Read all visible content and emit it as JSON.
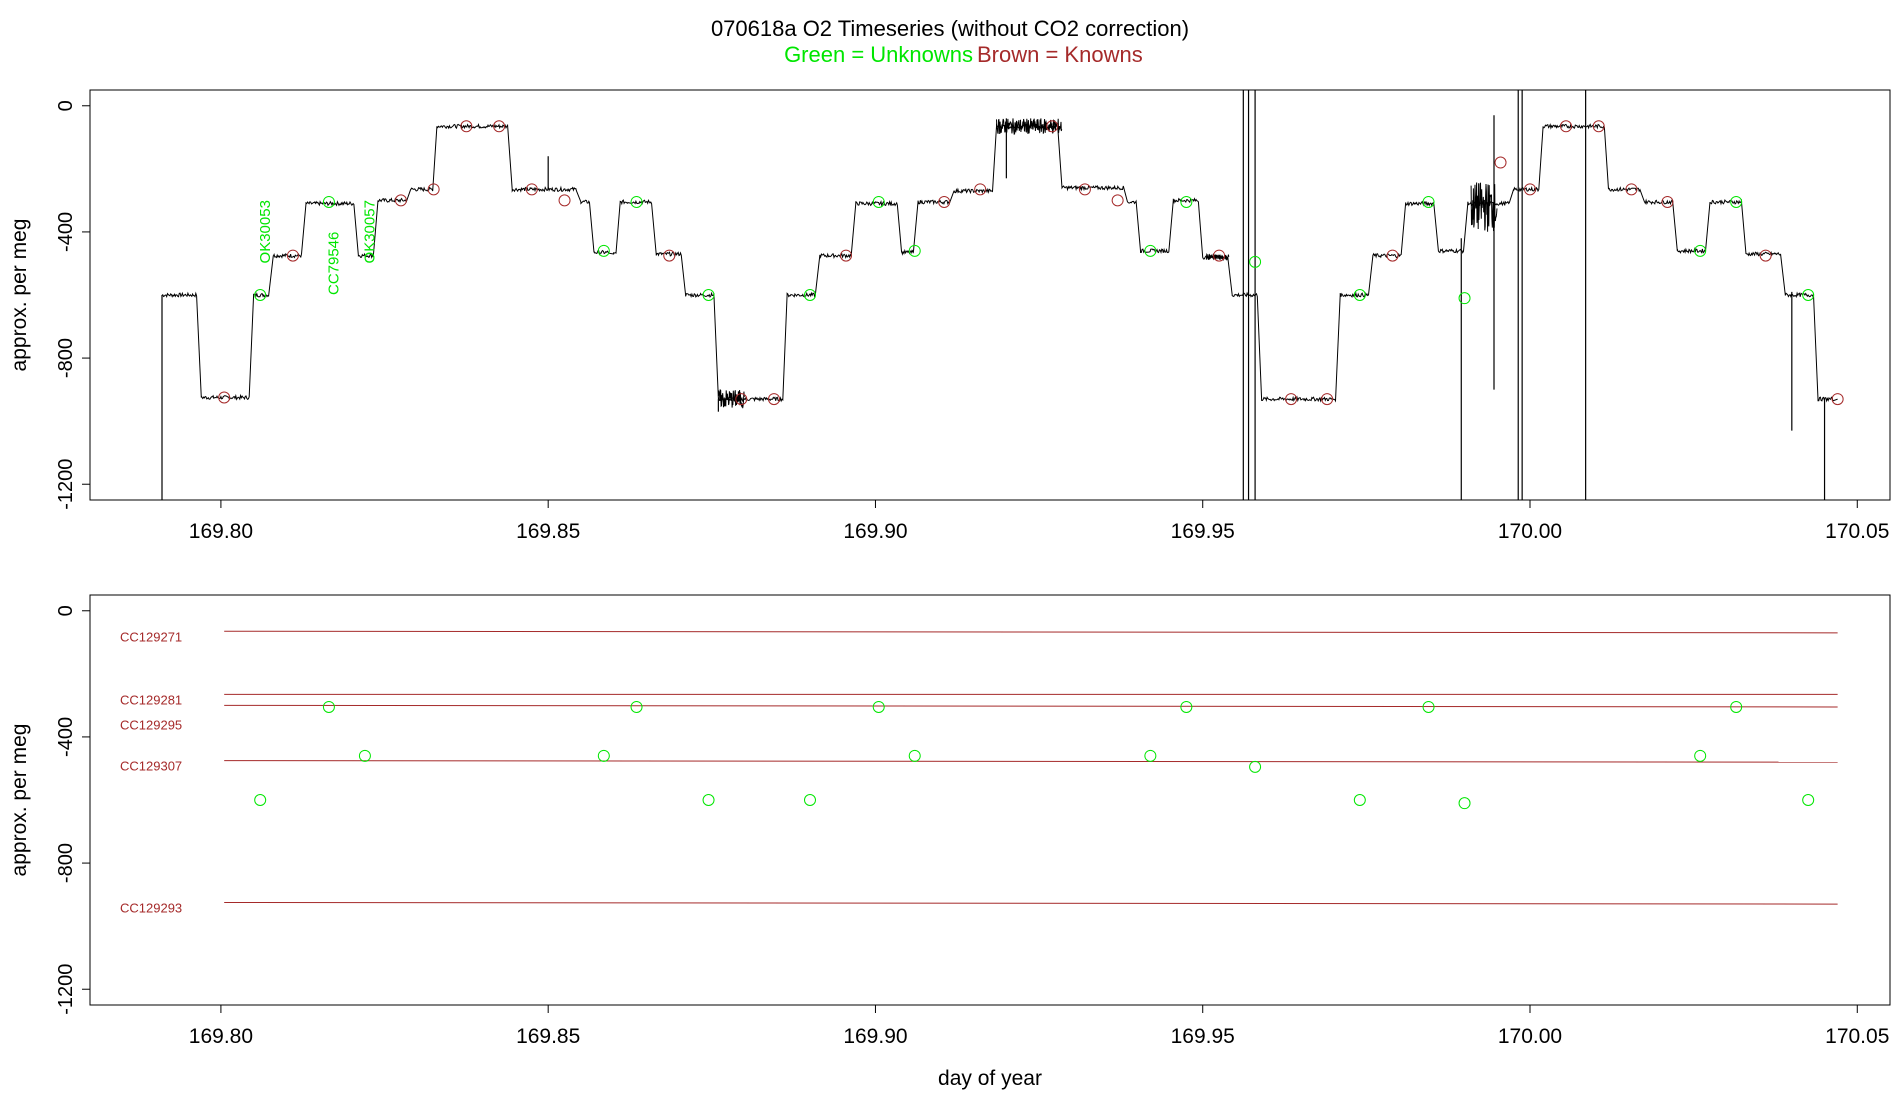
{
  "title": {
    "line1": "070618a   O2 Timeseries (without CO2 correction)",
    "legend_green": "Green = Unknowns",
    "legend_brown": "Brown = Knowns"
  },
  "colors": {
    "unknown": "#00e600",
    "known": "#a52a2a",
    "trace": "#000000",
    "axis": "#000000"
  },
  "chart_data": [
    {
      "type": "line",
      "name": "top",
      "xlim": [
        169.78,
        170.055
      ],
      "ylim": [
        -1250,
        50
      ],
      "yticks": [
        0,
        -400,
        -800,
        -1200
      ],
      "ytick_labels": [
        "0",
        "-400",
        "-800",
        "-1200"
      ],
      "xticks": [
        169.8,
        169.85,
        169.9,
        169.95,
        170.0,
        170.05
      ],
      "xtick_labels": [
        "169.80",
        "169.85",
        "169.90",
        "169.95",
        "170.00",
        "170.05"
      ],
      "ylabel": "approx. per meg",
      "xlabel": "",
      "trace_steps": [
        [
          169.791,
          -600
        ],
        [
          169.797,
          -925
        ],
        [
          169.805,
          -600
        ],
        [
          169.808,
          -475
        ],
        [
          169.813,
          -310
        ],
        [
          169.821,
          -475
        ],
        [
          169.824,
          -300
        ],
        [
          169.829,
          -265
        ],
        [
          169.833,
          -65
        ],
        [
          169.8445,
          -265
        ],
        [
          169.855,
          -305
        ],
        [
          169.857,
          -465
        ],
        [
          169.86,
          -470
        ],
        [
          169.861,
          -305
        ],
        [
          169.8665,
          -470
        ],
        [
          169.871,
          -600
        ],
        [
          169.876,
          -930
        ],
        [
          169.8865,
          -600
        ],
        [
          169.8915,
          -475
        ],
        [
          169.897,
          -310
        ],
        [
          169.904,
          -465
        ],
        [
          169.9065,
          -305
        ],
        [
          169.912,
          -270
        ],
        [
          169.9185,
          -65
        ],
        [
          169.9285,
          -260
        ],
        [
          169.9385,
          -305
        ],
        [
          169.9405,
          -460
        ],
        [
          169.9455,
          -300
        ],
        [
          169.95,
          -480
        ],
        [
          169.9545,
          -600
        ],
        [
          169.959,
          -930
        ],
        [
          169.971,
          -600
        ],
        [
          169.976,
          -475
        ],
        [
          169.981,
          -310
        ],
        [
          169.986,
          -460
        ],
        [
          169.9905,
          -310
        ],
        [
          169.9975,
          -265
        ],
        [
          170.002,
          -65
        ],
        [
          170.012,
          -265
        ],
        [
          170.0175,
          -305
        ],
        [
          170.0225,
          -460
        ],
        [
          170.0275,
          -305
        ],
        [
          170.033,
          -470
        ],
        [
          170.039,
          -600
        ],
        [
          170.044,
          -930
        ],
        [
          170.047,
          -930
        ]
      ],
      "trace_end": 170.047,
      "spikes": [
        [
          169.791,
          -600,
          -1250
        ],
        [
          169.9562,
          50,
          -1250
        ],
        [
          169.957,
          50,
          -1250
        ],
        [
          169.958,
          50,
          -1250
        ],
        [
          169.9895,
          -420,
          -1250
        ],
        [
          169.9945,
          -30,
          -900
        ],
        [
          169.9982,
          50,
          -1250
        ],
        [
          169.9988,
          50,
          -1250
        ],
        [
          170.0085,
          50,
          -1250
        ],
        [
          170.04,
          -590,
          -1030
        ],
        [
          170.045,
          -930,
          -1250
        ],
        [
          169.92,
          -40,
          -230
        ],
        [
          169.876,
          -930,
          -970
        ],
        [
          169.85,
          -265,
          -160
        ]
      ],
      "noisy_segments": [
        [
          169.9185,
          169.9285,
          -65,
          25
        ],
        [
          169.991,
          169.995,
          -320,
          80
        ],
        [
          169.876,
          169.88,
          -930,
          30
        ],
        [
          169.9505,
          169.954,
          -480,
          10
        ]
      ],
      "knowns_points": [
        [
          169.8005,
          -925
        ],
        [
          169.811,
          -475
        ],
        [
          169.8275,
          -300
        ],
        [
          169.8325,
          -265
        ],
        [
          169.8375,
          -65
        ],
        [
          169.8425,
          -65
        ],
        [
          169.8475,
          -265
        ],
        [
          169.8525,
          -300
        ],
        [
          169.8685,
          -475
        ],
        [
          169.8795,
          -930
        ],
        [
          169.8845,
          -930
        ],
        [
          169.8955,
          -475
        ],
        [
          169.9105,
          -305
        ],
        [
          169.916,
          -265
        ],
        [
          169.927,
          -65
        ],
        [
          169.932,
          -265
        ],
        [
          169.937,
          -300
        ],
        [
          169.9525,
          -475
        ],
        [
          169.9635,
          -930
        ],
        [
          169.969,
          -930
        ],
        [
          169.979,
          -475
        ],
        [
          169.9955,
          -180
        ],
        [
          170.0,
          -265
        ],
        [
          170.0055,
          -65
        ],
        [
          170.0105,
          -65
        ],
        [
          170.0155,
          -265
        ],
        [
          170.021,
          -305
        ],
        [
          170.036,
          -475
        ],
        [
          170.047,
          -930
        ]
      ],
      "unknowns_points": [
        [
          169.806,
          -600
        ],
        [
          169.8165,
          -305
        ],
        [
          169.8585,
          -460
        ],
        [
          169.8635,
          -305
        ],
        [
          169.8745,
          -600
        ],
        [
          169.89,
          -600
        ],
        [
          169.9005,
          -305
        ],
        [
          169.906,
          -460
        ],
        [
          169.942,
          -460
        ],
        [
          169.9475,
          -305
        ],
        [
          169.958,
          -495
        ],
        [
          169.974,
          -600
        ],
        [
          169.9845,
          -305
        ],
        [
          169.99,
          -610
        ],
        [
          170.026,
          -460
        ],
        [
          170.0315,
          -305
        ],
        [
          170.0425,
          -600
        ]
      ],
      "unknown_labels": [
        {
          "text": "OK30053",
          "x": 169.8075,
          "y": -500
        },
        {
          "text": "CC79546",
          "x": 169.818,
          "y": -600
        },
        {
          "text": "OK30057",
          "x": 169.8235,
          "y": -500
        }
      ]
    },
    {
      "type": "scatter",
      "name": "bottom",
      "xlim": [
        169.78,
        170.055
      ],
      "ylim": [
        -1250,
        50
      ],
      "yticks": [
        0,
        -400,
        -800,
        -1200
      ],
      "ytick_labels": [
        "0",
        "-400",
        "-800",
        "-1200"
      ],
      "xticks": [
        169.8,
        169.85,
        169.9,
        169.95,
        170.0,
        170.05
      ],
      "xtick_labels": [
        "169.80",
        "169.85",
        "169.90",
        "169.95",
        "170.00",
        "170.05"
      ],
      "ylabel": "approx. per meg",
      "xlabel": "day of year",
      "standard_lines": [
        {
          "name": "CC129271",
          "y0": -65,
          "y1": -70
        },
        {
          "name": "CC129281",
          "y0": -265,
          "y1": -265
        },
        {
          "name": "CC129295",
          "y0": -300,
          "y1": -305
        },
        {
          "name": "CC129307",
          "y0": -475,
          "y1": -480
        },
        {
          "name": "CC129293",
          "y0": -925,
          "y1": -930
        }
      ],
      "standard_label_offsets": [
        0,
        0,
        14,
        0,
        0
      ],
      "line_x_range": [
        169.8005,
        170.047
      ],
      "unknowns_points": [
        [
          169.806,
          -600
        ],
        [
          169.8165,
          -305
        ],
        [
          169.822,
          -460
        ],
        [
          169.8585,
          -460
        ],
        [
          169.8635,
          -305
        ],
        [
          169.8745,
          -600
        ],
        [
          169.89,
          -600
        ],
        [
          169.9005,
          -305
        ],
        [
          169.906,
          -460
        ],
        [
          169.942,
          -460
        ],
        [
          169.9475,
          -305
        ],
        [
          169.958,
          -495
        ],
        [
          169.974,
          -600
        ],
        [
          169.9845,
          -305
        ],
        [
          169.99,
          -610
        ],
        [
          170.026,
          -460
        ],
        [
          170.0315,
          -305
        ],
        [
          170.0425,
          -600
        ]
      ]
    }
  ]
}
